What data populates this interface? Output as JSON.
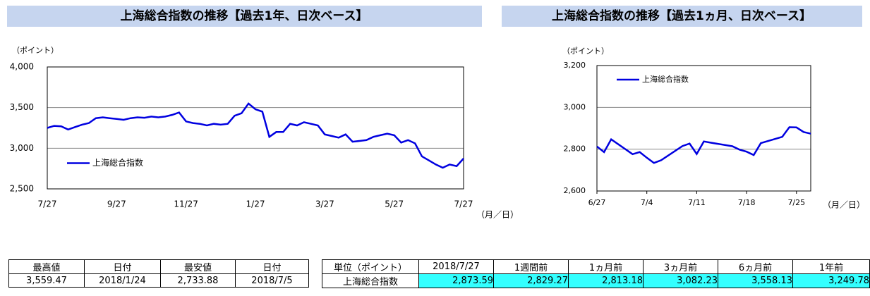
{
  "chart_data": [
    {
      "type": "line",
      "title": "上海総合指数の推移【過去1年、日次ベース】",
      "y_unit": "（ポイント）",
      "x_unit": "（月／日）",
      "categories": [
        "7/27",
        null,
        null,
        null,
        null,
        null,
        null,
        null,
        null,
        null,
        "9/27",
        null,
        null,
        null,
        null,
        null,
        null,
        null,
        null,
        null,
        "11/27",
        null,
        null,
        null,
        null,
        null,
        null,
        null,
        null,
        null,
        "1/27",
        null,
        null,
        null,
        null,
        null,
        null,
        null,
        null,
        null,
        "3/27",
        null,
        null,
        null,
        null,
        null,
        null,
        null,
        null,
        null,
        "5/27",
        null,
        null,
        null,
        null,
        null,
        null,
        null,
        null,
        null,
        "7/27"
      ],
      "series": [
        {
          "name": "上海総合指数",
          "color": "#0000e0",
          "values": [
            3250,
            3275,
            3270,
            3230,
            3260,
            3290,
            3310,
            3370,
            3380,
            3370,
            3360,
            3350,
            3370,
            3380,
            3375,
            3390,
            3380,
            3390,
            3410,
            3440,
            3330,
            3310,
            3300,
            3280,
            3300,
            3290,
            3300,
            3400,
            3430,
            3550,
            3480,
            3450,
            3140,
            3200,
            3200,
            3300,
            3280,
            3320,
            3300,
            3280,
            3170,
            3150,
            3130,
            3170,
            3080,
            3090,
            3100,
            3140,
            3160,
            3180,
            3160,
            3070,
            3100,
            3060,
            2900,
            2850,
            2800,
            2760,
            2800,
            2780,
            2874
          ]
        }
      ],
      "ylim": [
        2500,
        4000
      ],
      "yticks": [
        {
          "value": 2500,
          "label": "2,500"
        },
        {
          "value": 3000,
          "label": "3,000"
        },
        {
          "value": 3500,
          "label": "3,500"
        },
        {
          "value": 4000,
          "label": "4,000"
        }
      ],
      "grid": true,
      "legend": "center left"
    },
    {
      "type": "line",
      "title": "上海総合指数の推移【過去1ヵ月、日次ベース】",
      "y_unit": "（ポイント）",
      "x_unit": "（月／日）",
      "x": [
        "6/27",
        "6/28",
        "6/29",
        "7/2",
        "7/3",
        "7/4",
        "7/5",
        "7/6",
        "7/9",
        "7/10",
        "7/11",
        "7/12",
        "7/13",
        "7/16",
        "7/17",
        "7/18",
        "7/19",
        "7/20",
        "7/23",
        "7/24",
        "7/25",
        "7/26",
        "7/27"
      ],
      "xlim": [
        "6/27",
        "7/27"
      ],
      "xticks": [
        "6/27",
        "7/4",
        "7/11",
        "7/18",
        "7/25"
      ],
      "series": [
        {
          "name": "上海総合指数",
          "color": "#0000e0",
          "values": [
            2813,
            2786,
            2847,
            2776,
            2786,
            2759,
            2734,
            2747,
            2815,
            2827,
            2777,
            2837,
            2831,
            2814,
            2798,
            2788,
            2772,
            2829,
            2859,
            2905,
            2904,
            2882,
            2874
          ]
        }
      ],
      "ylim": [
        2600,
        3200
      ],
      "yticks": [
        {
          "value": 2600,
          "label": "2,600"
        },
        {
          "value": 2800,
          "label": "2,800"
        },
        {
          "value": 3000,
          "label": "3,000"
        },
        {
          "value": 3200,
          "label": "3,200"
        }
      ],
      "grid": true,
      "legend": "upper left"
    }
  ],
  "tables": [
    {
      "header": [
        "最高値",
        "日付",
        "最安値",
        "日付"
      ],
      "rows": [
        [
          "3,559.47",
          "2018/1/24",
          "2,733.88",
          "2018/7/5"
        ]
      ]
    },
    {
      "header": [
        "単位（ポイント）",
        "2018/7/27",
        "1週間前",
        "1ヵ月前",
        "3ヵ月前",
        "6ヵ月前",
        "1年前"
      ],
      "rows": [
        [
          "上海総合指数",
          "2,873.59",
          "2,829.27",
          "2,813.18",
          "3,082.23",
          "3,558.13",
          "3,249.78"
        ]
      ]
    }
  ]
}
